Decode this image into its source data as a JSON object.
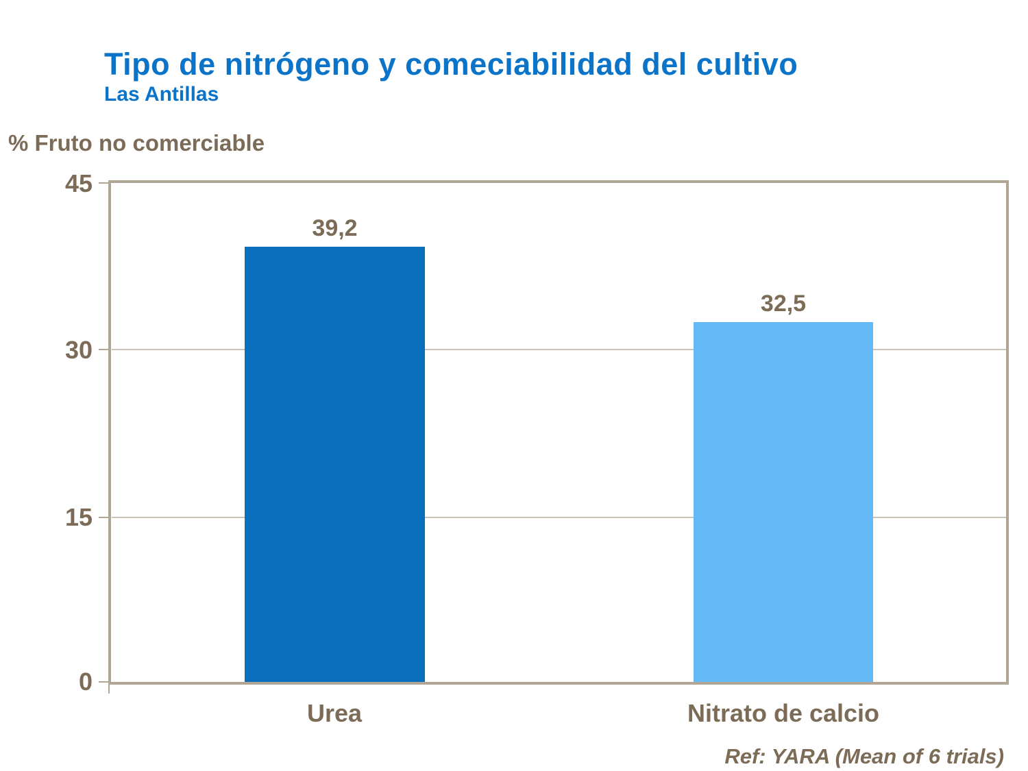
{
  "header": {
    "title": "Tipo de nitrógeno y comeciabilidad del cultivo",
    "subtitle": "Las Antillas"
  },
  "footer": {
    "reference": "Ref: YARA (Mean of 6 trials)"
  },
  "colors": {
    "title_blue": "#0b74c8",
    "text_brown": "#7b6b57",
    "bar_urea": "#0a70be",
    "bar_nitrato": "#66b9f7",
    "axis_frame": "#b1a695",
    "gridline": "#cbc3b6",
    "background": "#ffffff"
  },
  "chart_data": {
    "type": "bar",
    "title": "Tipo de nitrógeno y comeciabilidad del cultivo",
    "subtitle": "Las Antillas",
    "ylabel": "% Fruto no comerciable",
    "xlabel": "",
    "categories": [
      "Urea",
      "Nitrato de calcio"
    ],
    "values": [
      39.2,
      32.5
    ],
    "value_labels": [
      "39,2",
      "32,5"
    ],
    "bar_colors": [
      "#0a70be",
      "#66b9f7"
    ],
    "ylim": [
      0,
      45
    ],
    "ytick_values": [
      45,
      30,
      15,
      0
    ],
    "ytick_labels": [
      "45",
      "30",
      "15",
      "0"
    ],
    "grid": "horizontal gridlines at 15 and 30, framed plot area",
    "legend": "none",
    "annotation": "Ref: YARA (Mean of 6 trials)"
  }
}
